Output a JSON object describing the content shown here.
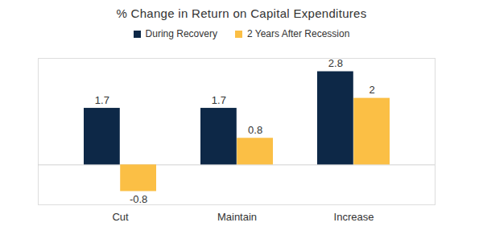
{
  "chart_data": {
    "type": "bar",
    "title": "% Change in Return on Capital Expenditures",
    "categories": [
      "Cut",
      "Maintain",
      "Increase"
    ],
    "series": [
      {
        "name": "During Recovery",
        "color": "#0d2847",
        "values": [
          1.7,
          1.7,
          2.8
        ]
      },
      {
        "name": "2 Years After Recession",
        "color": "#fbbf45",
        "values": [
          -0.8,
          0.8,
          2
        ]
      }
    ],
    "ylim": [
      -1.2,
      3.2
    ],
    "yticks": [
      0
    ],
    "legend": "top",
    "data_labels": true,
    "tick_labels": "x"
  }
}
